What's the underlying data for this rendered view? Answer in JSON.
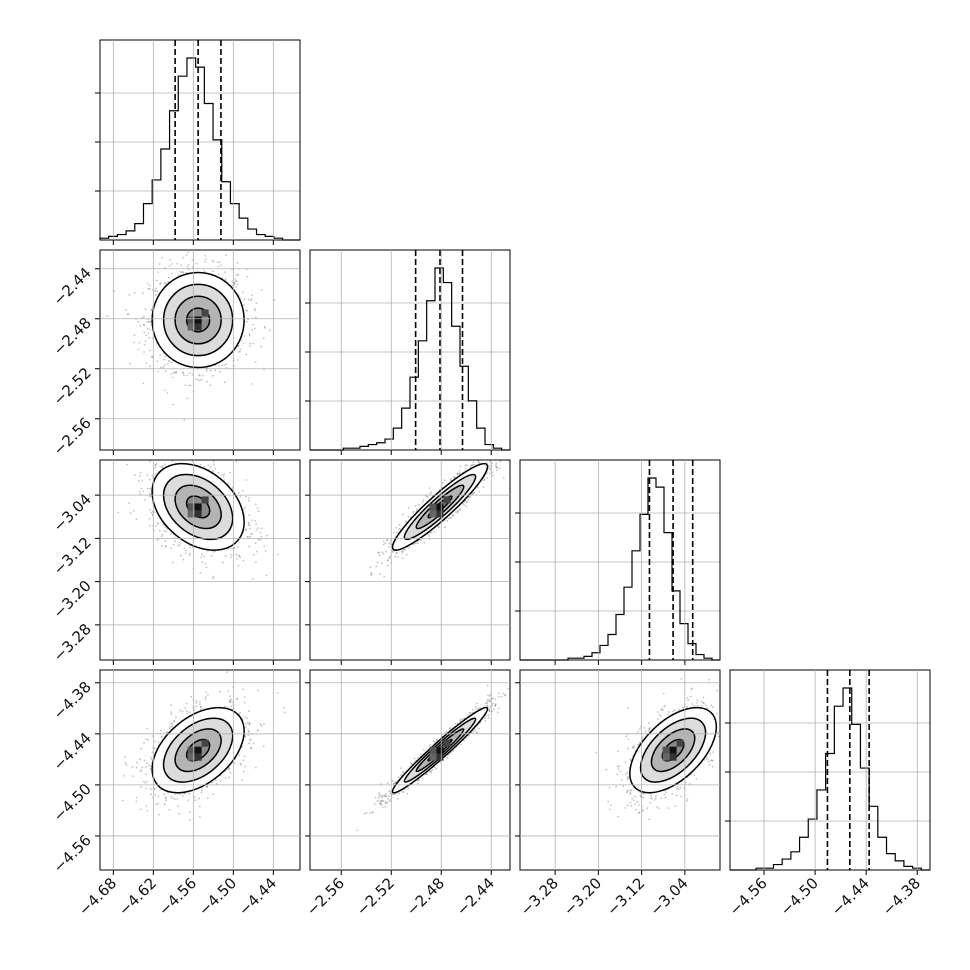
{
  "chart_data": {
    "type": "corner",
    "grid": true,
    "quantiles_shown": 3,
    "params": [
      {
        "range": [
          -4.7,
          -4.4
        ],
        "ticks": [
          "−4.68",
          "−4.62",
          "−4.56",
          "−4.50",
          "−4.44"
        ],
        "tick_values": [
          -4.68,
          -4.62,
          -4.56,
          -4.5,
          -4.44
        ],
        "quantiles": [
          -4.5873,
          -4.5528,
          -4.5186
        ],
        "median": -4.5528,
        "sigma": 0.0345
      },
      {
        "range": [
          -2.585,
          -2.425
        ],
        "ticks": [
          "−2.56",
          "−2.52",
          "−2.48",
          "−2.44"
        ],
        "tick_values": [
          -2.56,
          -2.52,
          -2.48,
          -2.44
        ],
        "quantiles": [
          -2.5005,
          -2.481,
          -2.463
        ],
        "median": -2.481,
        "sigma": 0.019
      },
      {
        "range": [
          -3.345,
          -2.975
        ],
        "ticks": [
          "−3.28",
          "−3.20",
          "−3.12",
          "−3.04"
        ],
        "tick_values": [
          -3.28,
          -3.2,
          -3.12,
          -3.04
        ],
        "quantiles": [
          -3.1055,
          -3.0618,
          -3.0255
        ],
        "median": -3.0618,
        "sigma": 0.04
      },
      {
        "range": [
          -4.6,
          -4.365
        ],
        "ticks": [
          "−4.56",
          "−4.50",
          "−4.44",
          "−4.38"
        ],
        "tick_values": [
          -4.56,
          -4.5,
          -4.44,
          -4.38
        ],
        "quantiles": [
          -4.4855,
          -4.4592,
          -4.4365
        ],
        "median": -4.4592,
        "sigma": 0.025
      }
    ],
    "histograms": [
      {
        "param": 0,
        "counts": [
          1,
          2,
          3,
          5,
          9,
          20,
          33,
          50,
          71,
          90,
          100,
          95,
          75,
          55,
          32,
          20,
          12,
          6,
          3,
          2,
          1,
          0,
          0
        ]
      },
      {
        "param": 1,
        "counts": [
          0,
          0,
          0,
          0,
          1,
          1,
          2,
          3,
          4,
          6,
          12,
          23,
          40,
          60,
          82,
          100,
          92,
          68,
          46,
          27,
          12,
          3,
          1,
          0
        ]
      },
      {
        "param": 2,
        "counts": [
          0,
          0,
          0,
          0,
          0,
          0,
          1,
          1,
          2,
          4,
          8,
          14,
          25,
          40,
          60,
          80,
          100,
          95,
          70,
          38,
          20,
          9,
          3,
          1,
          0
        ]
      },
      {
        "param": 3,
        "counts": [
          0,
          0,
          0,
          1,
          1,
          3,
          6,
          10,
          18,
          28,
          44,
          64,
          90,
          100,
          80,
          56,
          35,
          18,
          9,
          5,
          2,
          1,
          0
        ]
      }
    ],
    "correlations": [
      {
        "x": 0,
        "y": 1,
        "rho": 0.0
      },
      {
        "x": 0,
        "y": 2,
        "rho": -0.35
      },
      {
        "x": 1,
        "y": 2,
        "rho": 0.93
      },
      {
        "x": 0,
        "y": 3,
        "rho": 0.45
      },
      {
        "x": 1,
        "y": 3,
        "rho": 0.97
      },
      {
        "x": 2,
        "y": 3,
        "rho": 0.55
      }
    ]
  },
  "colors": {
    "line": "#000000",
    "grid": "#b0b0b0",
    "points": "#7a7a7a"
  }
}
